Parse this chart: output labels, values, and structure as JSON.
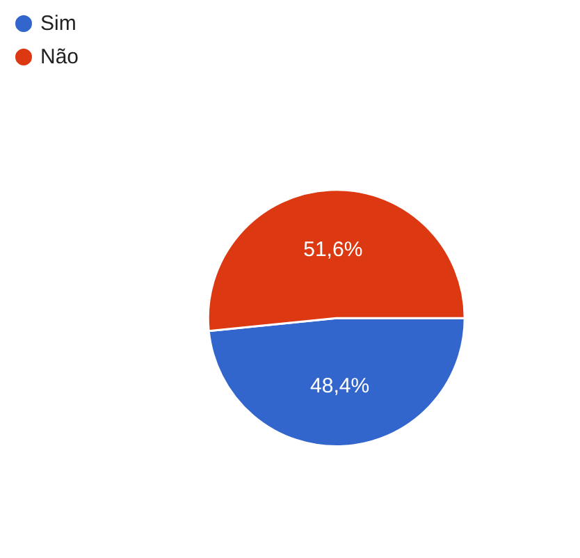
{
  "chart_data": {
    "type": "pie",
    "categories": [
      "Sim",
      "Não"
    ],
    "values": [
      48.4,
      51.6
    ],
    "colors": [
      "#3366cc",
      "#dc3912"
    ],
    "value_labels": [
      "48,4%",
      "51,6%"
    ],
    "legend": "top left"
  }
}
